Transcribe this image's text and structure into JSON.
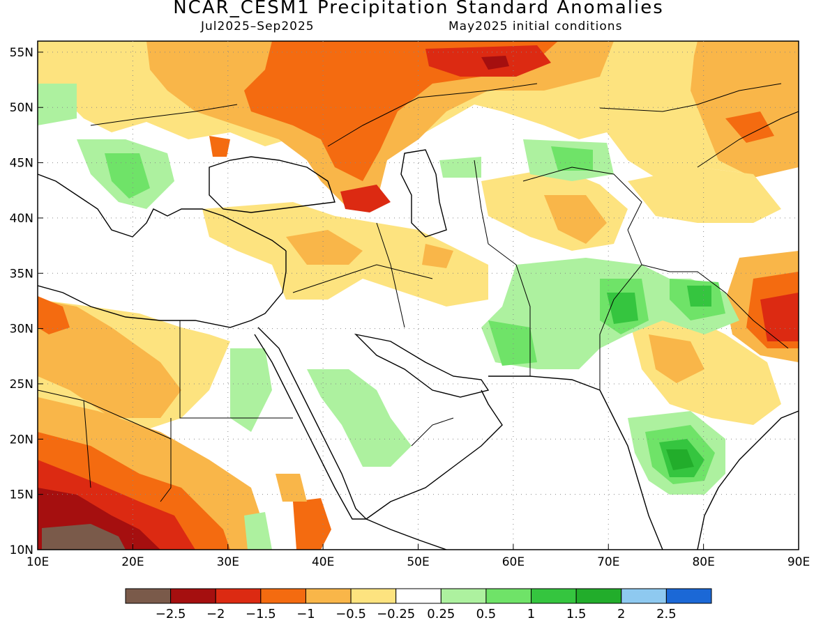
{
  "title": "NCAR_CESM1 Precipitation Standard Anomalies",
  "subtitle_period": "Jul2025–Sep2025",
  "subtitle_init": "May2025 initial conditions",
  "map": {
    "lat_labels": [
      "10N",
      "15N",
      "20N",
      "25N",
      "30N",
      "35N",
      "40N",
      "45N",
      "50N",
      "55N"
    ],
    "lon_labels": [
      "10E",
      "20E",
      "30E",
      "40E",
      "50E",
      "60E",
      "70E",
      "80E",
      "90E"
    ],
    "extent": {
      "lon_min": 10,
      "lon_max": 90,
      "lat_min": 10,
      "lat_max": 56
    }
  },
  "colorbar": {
    "colors": [
      "#7a5a4a",
      "#a50f0f",
      "#dc2a12",
      "#f46b10",
      "#f9b649",
      "#fde37f",
      "#ffffff",
      "#adf19f",
      "#6fe368",
      "#35c53f",
      "#22ad2b",
      "#8ec9f0",
      "#1b68d6"
    ],
    "labels": [
      "−2.5",
      "−2",
      "−1.5",
      "−1",
      "−0.5",
      "−0.25",
      "0.25",
      "0.5",
      "1",
      "1.5",
      "2",
      "2.5"
    ]
  }
}
